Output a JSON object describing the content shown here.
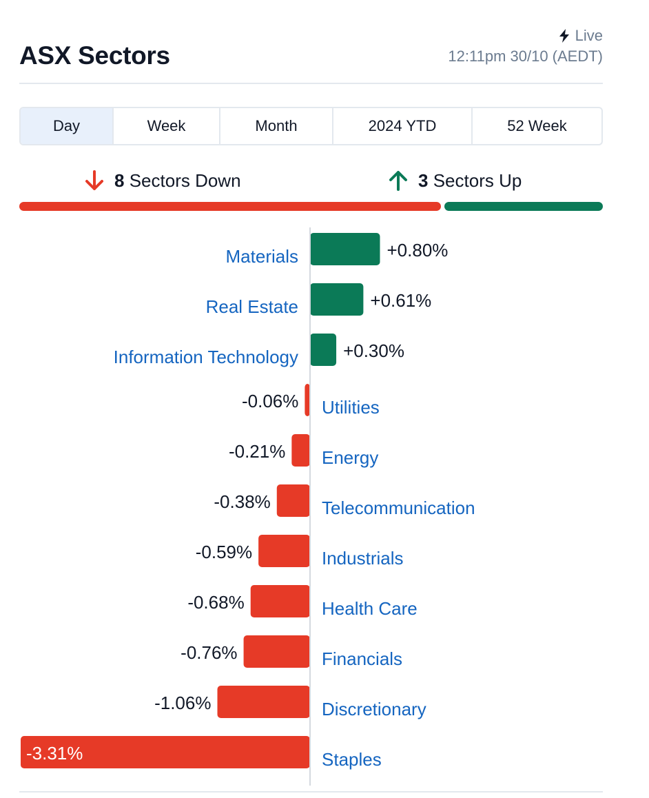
{
  "header": {
    "title": "ASX Sectors",
    "live_label": "Live",
    "timestamp": "12:11pm 30/10 (AEDT)"
  },
  "tabs": [
    {
      "label": "Day",
      "active": true
    },
    {
      "label": "Week",
      "active": false
    },
    {
      "label": "Month",
      "active": false
    },
    {
      "label": "2024 YTD",
      "active": false
    },
    {
      "label": "52 Week",
      "active": false
    }
  ],
  "summary": {
    "down_count": "8",
    "down_label": "Sectors Down",
    "up_count": "3",
    "up_label": "Sectors Up"
  },
  "colors": {
    "up": "#0b7a57",
    "down": "#e63a27",
    "link": "#1565c0",
    "muted": "#6b7b8f",
    "border": "#e3e8ee",
    "active_tab": "#e8f0fb"
  },
  "chart_data": {
    "type": "bar",
    "orientation": "horizontal",
    "categories": [
      "Materials",
      "Real Estate",
      "Information Technology",
      "Utilities",
      "Energy",
      "Telecommunication",
      "Industrials",
      "Health Care",
      "Financials",
      "Discretionary",
      "Staples"
    ],
    "values": [
      0.8,
      0.61,
      0.3,
      -0.06,
      -0.21,
      -0.38,
      -0.59,
      -0.68,
      -0.76,
      -1.06,
      -3.31
    ],
    "labels": [
      "+0.80%",
      "+0.61%",
      "+0.30%",
      "-0.06%",
      "-0.21%",
      "-0.38%",
      "-0.59%",
      "-0.68%",
      "-0.76%",
      "-1.06%",
      "-3.31%"
    ],
    "unit": "%",
    "title": "",
    "xlabel": "",
    "ylabel": ""
  }
}
